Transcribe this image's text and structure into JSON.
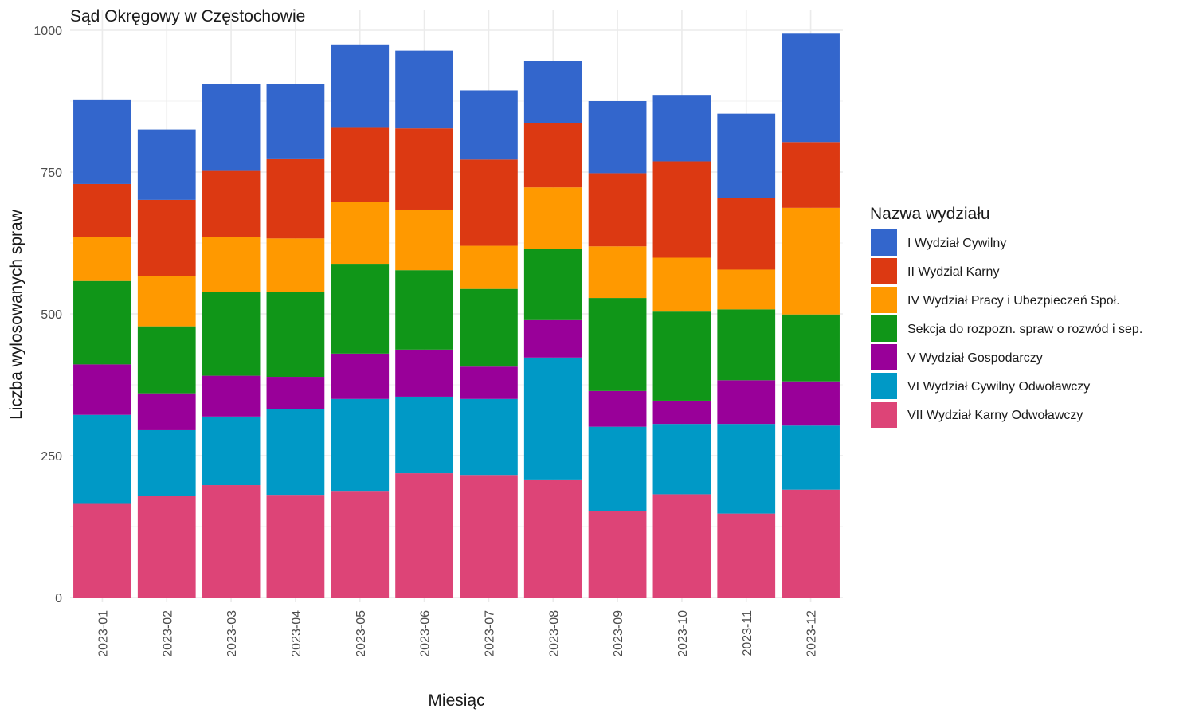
{
  "chart_data": {
    "type": "bar",
    "stacked": true,
    "title": "Sąd Okręgowy w Częstochowie",
    "xlabel": "Miesiąc",
    "ylabel": "Liczba wylosowanych spraw",
    "ylim": [
      0,
      1000
    ],
    "y_ticks": [
      "0",
      "250",
      "500",
      "750",
      "1000"
    ],
    "grid": true,
    "legend_title": "Nazwa wydziału",
    "legend_position": "right",
    "categories": [
      "2023-01",
      "2023-02",
      "2023-03",
      "2023-04",
      "2023-05",
      "2023-06",
      "2023-07",
      "2023-08",
      "2023-09",
      "2023-10",
      "2023-11",
      "2023-12"
    ],
    "series": [
      {
        "name": "VII Wydział Karny Odwoławczy",
        "color": "#DD4477",
        "values": [
          165,
          179,
          198,
          181,
          188,
          219,
          216,
          208,
          153,
          182,
          148,
          190
        ]
      },
      {
        "name": "VI Wydział Cywilny Odwoławczy",
        "color": "#0099C6",
        "values": [
          157,
          116,
          121,
          151,
          162,
          135,
          134,
          215,
          148,
          124,
          158,
          113
        ]
      },
      {
        "name": "V Wydział Gospodarczy",
        "color": "#990099",
        "values": [
          89,
          65,
          72,
          57,
          80,
          83,
          57,
          66,
          63,
          41,
          77,
          78
        ]
      },
      {
        "name": "Sekcja do rozpozn. spraw o rozwód i sep.",
        "color": "#109618",
        "values": [
          147,
          118,
          147,
          149,
          157,
          140,
          137,
          125,
          164,
          157,
          125,
          118
        ]
      },
      {
        "name": "IV Wydział Pracy i Ubezpieczeń Społ.",
        "color": "#FF9900",
        "values": [
          77,
          89,
          98,
          95,
          111,
          107,
          76,
          109,
          91,
          95,
          70,
          188
        ]
      },
      {
        "name": "II Wydział Karny",
        "color": "#DC3912",
        "values": [
          94,
          134,
          116,
          141,
          130,
          143,
          152,
          114,
          129,
          170,
          127,
          116
        ]
      },
      {
        "name": "I Wydział Cywilny",
        "color": "#3366CC",
        "values": [
          149,
          124,
          153,
          131,
          147,
          137,
          122,
          109,
          127,
          117,
          148,
          191
        ]
      }
    ],
    "legend_order": [
      "I Wydział Cywilny",
      "II Wydział Karny",
      "IV Wydział Pracy i Ubezpieczeń Społ.",
      "Sekcja do rozpozn. spraw o rozwód i sep.",
      "V Wydział Gospodarczy",
      "VI Wydział Cywilny Odwoławczy",
      "VII Wydział Karny Odwoławczy"
    ]
  }
}
